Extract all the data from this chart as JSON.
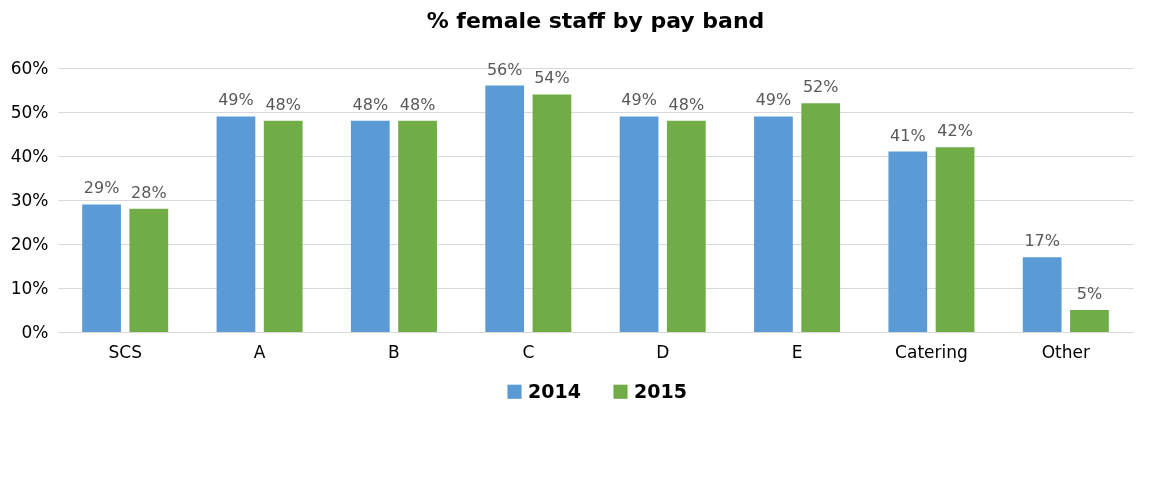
{
  "chart_data": {
    "type": "bar",
    "title": "% female staff by pay band",
    "categories": [
      "SCS",
      "A",
      "B",
      "C",
      "D",
      "E",
      "Catering",
      "Other"
    ],
    "series": [
      {
        "name": "2014",
        "color": "#5b9bd5",
        "values": [
          29,
          49,
          48,
          56,
          49,
          49,
          41,
          17
        ],
        "value_labels": [
          "29%",
          "49%",
          "48%",
          "56%",
          "49%",
          "49%",
          "41%",
          "17%"
        ]
      },
      {
        "name": "2015",
        "color": "#70ad47",
        "values": [
          28,
          48,
          48,
          54,
          48,
          52,
          42,
          5
        ],
        "value_labels": [
          "28%",
          "48%",
          "48%",
          "54%",
          "48%",
          "52%",
          "42%",
          "5%"
        ]
      }
    ],
    "ylim": [
      0,
      60
    ],
    "yticks": [
      {
        "value": 0,
        "label": "0%"
      },
      {
        "value": 10,
        "label": "10%"
      },
      {
        "value": 20,
        "label": "20%"
      },
      {
        "value": 30,
        "label": "30%"
      },
      {
        "value": 40,
        "label": "40%"
      },
      {
        "value": 50,
        "label": "50%"
      },
      {
        "value": 60,
        "label": "60%"
      }
    ],
    "grid": "y",
    "legend": "bottom"
  }
}
